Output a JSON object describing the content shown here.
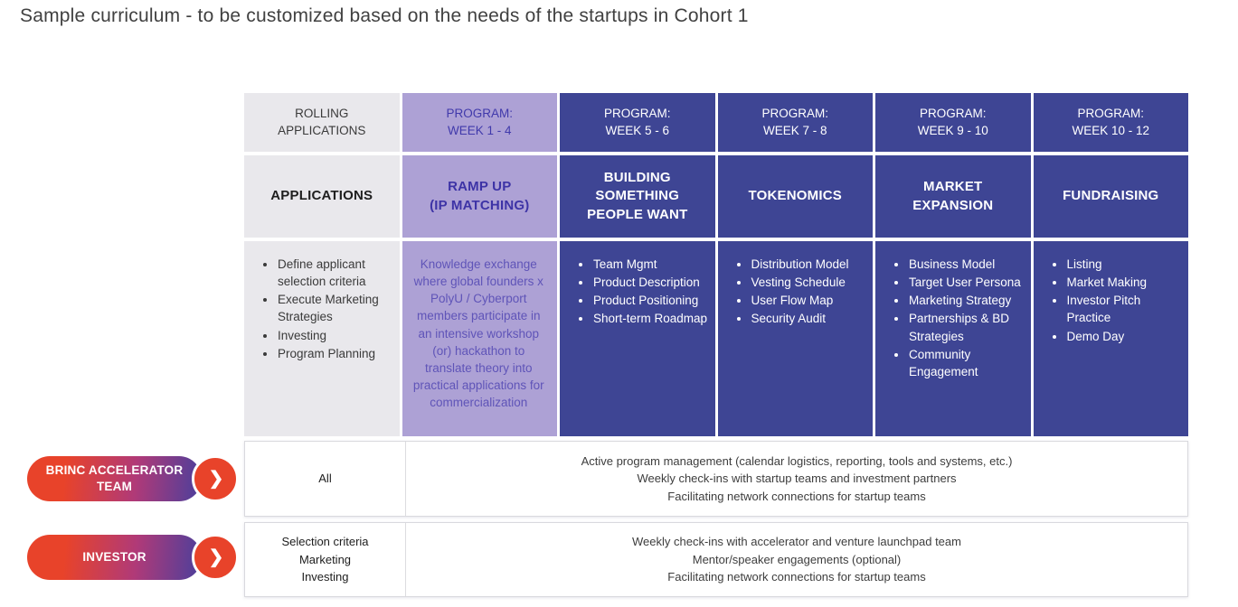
{
  "page": {
    "title": "Sample curriculum - to be customized based on the needs of the startups in Cohort 1"
  },
  "colors": {
    "dark_blue": "#3e4594",
    "light_purple": "#ada1d5",
    "purple_text": "#3d33a6",
    "gray_cell": "#e9e8ec",
    "pill_red": "#e8432a",
    "pill_purple_end": "#4a3f9c"
  },
  "table": {
    "columns": [
      {
        "theme": "gray",
        "header": "ROLLING\nAPPLICATIONS",
        "phase": "APPLICATIONS",
        "bullets": [
          "Define applicant selection criteria",
          "Execute Marketing Strategies",
          "Investing",
          "Program Planning"
        ]
      },
      {
        "theme": "light-purple",
        "header": "PROGRAM:\nWEEK 1 - 4",
        "phase": "RAMP UP\n(IP MATCHING)",
        "paragraph": "Knowledge exchange where global founders x PolyU / Cyberport members participate in an intensive workshop (or) hackathon to translate theory into practical applications for commercialization"
      },
      {
        "theme": "dark-blue",
        "header": "PROGRAM:\nWEEK 5 - 6",
        "phase": "BUILDING\nSOMETHING\nPEOPLE WANT",
        "bullets": [
          "Team Mgmt",
          "Product Description",
          "Product Positioning",
          "Short-term Roadmap"
        ]
      },
      {
        "theme": "dark-blue",
        "header": "PROGRAM:\nWEEK 7 - 8",
        "phase": "TOKENOMICS",
        "bullets": [
          "Distribution Model",
          "Vesting Schedule",
          "User Flow Map",
          "Security Audit"
        ]
      },
      {
        "theme": "dark-blue",
        "header": "PROGRAM:\nWEEK 9 - 10",
        "phase": "MARKET\nEXPANSION",
        "bullets": [
          "Business Model",
          "Target User Persona",
          "Marketing Strategy",
          "Partnerships & BD Strategies",
          "Community Engagement"
        ]
      },
      {
        "theme": "dark-blue",
        "header": "PROGRAM:\nWEEK 10 - 12",
        "phase": "FUNDRAISING",
        "bullets": [
          "Listing",
          "Market Making",
          "Investor Pitch Practice",
          "Demo Day"
        ]
      }
    ]
  },
  "swimlanes": [
    {
      "pill": "BRINC ACCELERATOR\nTEAM",
      "scope": "All",
      "lines": [
        "Active program management (calendar logistics, reporting, tools and systems, etc.)",
        "Weekly check-ins with startup teams and investment partners",
        "Facilitating network connections for startup teams"
      ]
    },
    {
      "pill": "INVESTOR",
      "scope": "Selection criteria\nMarketing\nInvesting",
      "lines": [
        "Weekly check-ins with accelerator and venture launchpad team",
        "Mentor/speaker engagements (optional)",
        "Facilitating network connections for startup teams"
      ]
    }
  ]
}
